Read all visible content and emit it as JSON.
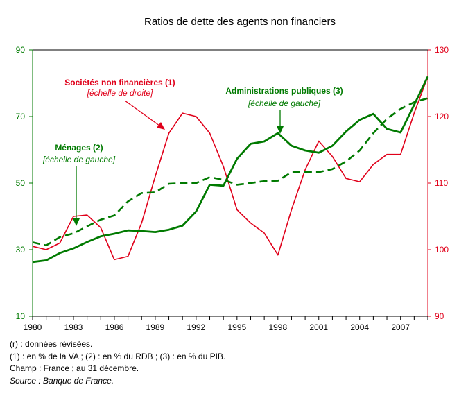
{
  "chart_data": {
    "type": "line",
    "title": "Ratios de dette des agents non financiers",
    "x_ticks": [
      "1980",
      "1983",
      "1986",
      "1989",
      "1992",
      "1995",
      "1998",
      "2001",
      "2004",
      "2007"
    ],
    "x_range": [
      1980,
      2009
    ],
    "left_axis": {
      "range": [
        10,
        90
      ],
      "ticks": [
        "10",
        "30",
        "50",
        "70",
        "90"
      ]
    },
    "right_axis": {
      "range": [
        90,
        130
      ],
      "ticks": [
        "90",
        "100",
        "110",
        "120",
        "130"
      ]
    },
    "grid": false,
    "series": [
      {
        "key": "snf",
        "axis": "right",
        "color": "#e0001a",
        "style": "solid",
        "x": [
          1980,
          1981,
          1982,
          1983,
          1984,
          1985,
          1986,
          1987,
          1988,
          1989,
          1990,
          1991,
          1992,
          1993,
          1994,
          1995,
          1996,
          1997,
          1998,
          1999,
          2000,
          2001,
          2002,
          2003,
          2004,
          2005,
          2006,
          2007,
          2008,
          2009
        ],
        "values": [
          100.5,
          100,
          101,
          105,
          105.2,
          103.3,
          98.5,
          99,
          104,
          111,
          117.5,
          120.5,
          120,
          117.5,
          112.5,
          106,
          104,
          102.5,
          99.2,
          106,
          112,
          116.3,
          114,
          110.7,
          110.2,
          112.8,
          114.3,
          114.3,
          120.5,
          126
        ]
      },
      {
        "key": "apu",
        "axis": "left",
        "color": "#007a00",
        "style": "solid",
        "x": [
          1980,
          1981,
          1982,
          1983,
          1984,
          1985,
          1986,
          1987,
          1988,
          1989,
          1990,
          1991,
          1992,
          1993,
          1994,
          1995,
          1996,
          1997,
          1998,
          1999,
          2000,
          2001,
          2002,
          2003,
          2004,
          2005,
          2006,
          2007,
          2008,
          2009
        ],
        "values": [
          26.3,
          26.8,
          29,
          30.4,
          32.3,
          34,
          34.8,
          35.8,
          35.6,
          35.3,
          36,
          37.2,
          41.5,
          49.5,
          49.2,
          57.3,
          61.8,
          62.5,
          65,
          61.2,
          59.8,
          59.1,
          61.2,
          65.5,
          69,
          70.8,
          66.3,
          65.2,
          73.5,
          82
        ]
      },
      {
        "key": "menages",
        "axis": "left",
        "color": "#007a00",
        "style": "dashed",
        "x": [
          1980,
          1981,
          1982,
          1983,
          1984,
          1985,
          1986,
          1987,
          1988,
          1989,
          1990,
          1991,
          1992,
          1993,
          1994,
          1995,
          1996,
          1997,
          1998,
          1999,
          2000,
          2001,
          2002,
          2003,
          2004,
          2005,
          2006,
          2007,
          2008,
          2009
        ],
        "values": [
          32.2,
          31.3,
          33.8,
          34.9,
          37,
          39,
          40.3,
          44.5,
          47,
          47.2,
          49.8,
          50,
          50,
          51.8,
          51,
          49.5,
          50,
          50.6,
          50.7,
          53.3,
          53.3,
          53.3,
          54.2,
          56.5,
          59.8,
          65,
          69.3,
          72.3,
          74.3,
          75.5
        ]
      }
    ],
    "annotations": {
      "snf_label": "Sociétés non financières (1)",
      "snf_scale": "[échelle de droite]",
      "apu_label": "Administrations publiques (3)",
      "apu_scale": "[échelle de gauche]",
      "men_label": "Ménages (2)",
      "men_scale": "[échelle de gauche]"
    }
  },
  "notes": {
    "line1": "(r) : données révisées.",
    "line2": "(1) : en % de la VA ; (2) : en % du RDB ; (3) : en % du PIB.",
    "line3": "Champ : France ; au 31 décembre.",
    "line4": "Source : Banque de France."
  }
}
